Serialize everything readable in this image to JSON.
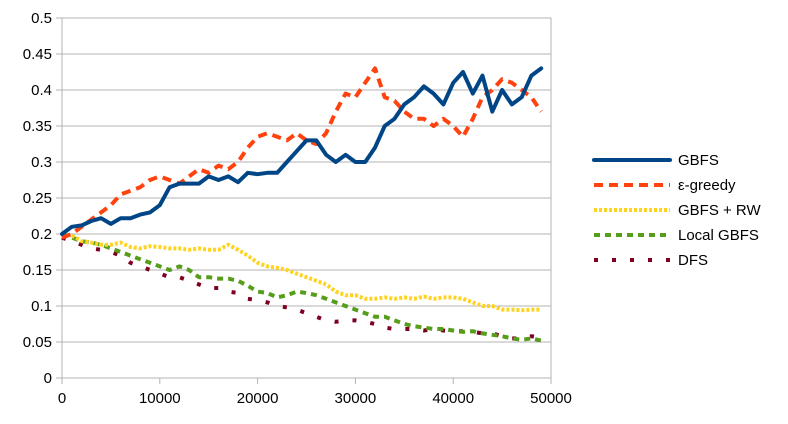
{
  "chart_data": {
    "type": "line",
    "title": "",
    "xlabel": "",
    "ylabel": "",
    "xlim": [
      0,
      50000
    ],
    "ylim": [
      0,
      0.5
    ],
    "x_ticks": [
      0,
      10000,
      20000,
      30000,
      40000,
      50000
    ],
    "x_tick_labels": [
      "0",
      "10000",
      "20000",
      "30000",
      "40000",
      "50000"
    ],
    "y_ticks": [
      0,
      0.05,
      0.1,
      0.15,
      0.2,
      0.25,
      0.3,
      0.35,
      0.4,
      0.45,
      0.5
    ],
    "y_tick_labels": [
      "0",
      "0.05",
      "0.1",
      "0.15",
      "0.2",
      "0.25",
      "0.3",
      "0.35",
      "0.4",
      "0.45",
      "0.5"
    ],
    "grid": "horizontal",
    "legend_position": "right",
    "series": [
      {
        "name": "GBFS",
        "color": "#004586",
        "style": "solid",
        "points": [
          [
            0,
            0.2
          ],
          [
            1000,
            0.21
          ],
          [
            2000,
            0.212
          ],
          [
            3000,
            0.218
          ],
          [
            4000,
            0.222
          ],
          [
            5000,
            0.214
          ],
          [
            6000,
            0.222
          ],
          [
            7000,
            0.222
          ],
          [
            8000,
            0.227
          ],
          [
            9000,
            0.23
          ],
          [
            10000,
            0.24
          ],
          [
            11000,
            0.265
          ],
          [
            12000,
            0.27
          ],
          [
            13000,
            0.27
          ],
          [
            14000,
            0.27
          ],
          [
            15000,
            0.28
          ],
          [
            16000,
            0.275
          ],
          [
            17000,
            0.28
          ],
          [
            18000,
            0.272
          ],
          [
            19000,
            0.285
          ],
          [
            20000,
            0.283
          ],
          [
            21000,
            0.285
          ],
          [
            22000,
            0.285
          ],
          [
            23000,
            0.3
          ],
          [
            24000,
            0.315
          ],
          [
            25000,
            0.33
          ],
          [
            26000,
            0.33
          ],
          [
            27000,
            0.31
          ],
          [
            28000,
            0.3
          ],
          [
            29000,
            0.31
          ],
          [
            30000,
            0.3
          ],
          [
            31000,
            0.3
          ],
          [
            32000,
            0.32
          ],
          [
            33000,
            0.35
          ],
          [
            34000,
            0.36
          ],
          [
            35000,
            0.38
          ],
          [
            36000,
            0.39
          ],
          [
            37000,
            0.405
          ],
          [
            38000,
            0.395
          ],
          [
            39000,
            0.38
          ],
          [
            40000,
            0.41
          ],
          [
            41000,
            0.425
          ],
          [
            42000,
            0.395
          ],
          [
            43000,
            0.42
          ],
          [
            44000,
            0.37
          ],
          [
            45000,
            0.4
          ],
          [
            46000,
            0.38
          ],
          [
            47000,
            0.39
          ],
          [
            48000,
            0.42
          ],
          [
            49000,
            0.43
          ]
        ]
      },
      {
        "name": "ε-greedy",
        "color": "#ff420e",
        "style": "dashed",
        "points": [
          [
            0,
            0.195
          ],
          [
            1000,
            0.2
          ],
          [
            2000,
            0.21
          ],
          [
            3000,
            0.22
          ],
          [
            4000,
            0.23
          ],
          [
            5000,
            0.24
          ],
          [
            6000,
            0.255
          ],
          [
            7000,
            0.26
          ],
          [
            8000,
            0.265
          ],
          [
            9000,
            0.275
          ],
          [
            10000,
            0.28
          ],
          [
            11000,
            0.275
          ],
          [
            12000,
            0.27
          ],
          [
            13000,
            0.28
          ],
          [
            14000,
            0.29
          ],
          [
            15000,
            0.285
          ],
          [
            16000,
            0.295
          ],
          [
            17000,
            0.29
          ],
          [
            18000,
            0.3
          ],
          [
            19000,
            0.32
          ],
          [
            20000,
            0.335
          ],
          [
            21000,
            0.34
          ],
          [
            22000,
            0.335
          ],
          [
            23000,
            0.33
          ],
          [
            24000,
            0.34
          ],
          [
            25000,
            0.33
          ],
          [
            26000,
            0.325
          ],
          [
            27000,
            0.34
          ],
          [
            28000,
            0.37
          ],
          [
            29000,
            0.395
          ],
          [
            30000,
            0.39
          ],
          [
            31000,
            0.41
          ],
          [
            32000,
            0.43
          ],
          [
            33000,
            0.39
          ],
          [
            34000,
            0.385
          ],
          [
            35000,
            0.37
          ],
          [
            36000,
            0.36
          ],
          [
            37000,
            0.36
          ],
          [
            38000,
            0.35
          ],
          [
            39000,
            0.36
          ],
          [
            40000,
            0.35
          ],
          [
            41000,
            0.335
          ],
          [
            42000,
            0.36
          ],
          [
            43000,
            0.39
          ],
          [
            44000,
            0.4
          ],
          [
            45000,
            0.415
          ],
          [
            46000,
            0.41
          ],
          [
            47000,
            0.4
          ],
          [
            48000,
            0.39
          ],
          [
            49000,
            0.37
          ]
        ]
      },
      {
        "name": "GBFS + RW",
        "color": "#ffd320",
        "style": "dotted",
        "points": [
          [
            0,
            0.2
          ],
          [
            1000,
            0.198
          ],
          [
            2000,
            0.19
          ],
          [
            3000,
            0.188
          ],
          [
            4000,
            0.185
          ],
          [
            5000,
            0.185
          ],
          [
            6000,
            0.188
          ],
          [
            7000,
            0.182
          ],
          [
            8000,
            0.18
          ],
          [
            9000,
            0.183
          ],
          [
            10000,
            0.182
          ],
          [
            11000,
            0.18
          ],
          [
            12000,
            0.18
          ],
          [
            13000,
            0.178
          ],
          [
            14000,
            0.18
          ],
          [
            15000,
            0.178
          ],
          [
            16000,
            0.178
          ],
          [
            17000,
            0.185
          ],
          [
            18000,
            0.178
          ],
          [
            19000,
            0.17
          ],
          [
            20000,
            0.16
          ],
          [
            21000,
            0.155
          ],
          [
            22000,
            0.153
          ],
          [
            23000,
            0.15
          ],
          [
            24000,
            0.145
          ],
          [
            25000,
            0.14
          ],
          [
            26000,
            0.135
          ],
          [
            27000,
            0.13
          ],
          [
            28000,
            0.12
          ],
          [
            29000,
            0.115
          ],
          [
            30000,
            0.115
          ],
          [
            31000,
            0.11
          ],
          [
            32000,
            0.11
          ],
          [
            33000,
            0.112
          ],
          [
            34000,
            0.11
          ],
          [
            35000,
            0.112
          ],
          [
            36000,
            0.11
          ],
          [
            37000,
            0.113
          ],
          [
            38000,
            0.11
          ],
          [
            39000,
            0.112
          ],
          [
            40000,
            0.112
          ],
          [
            41000,
            0.11
          ],
          [
            42000,
            0.105
          ],
          [
            43000,
            0.1
          ],
          [
            44000,
            0.1
          ],
          [
            45000,
            0.095
          ],
          [
            46000,
            0.095
          ],
          [
            47000,
            0.094
          ],
          [
            48000,
            0.095
          ],
          [
            49000,
            0.095
          ]
        ]
      },
      {
        "name": "Local GBFS",
        "color": "#579d1c",
        "style": "dotted-thick",
        "points": [
          [
            0,
            0.2
          ],
          [
            1000,
            0.195
          ],
          [
            2000,
            0.19
          ],
          [
            3000,
            0.188
          ],
          [
            4000,
            0.185
          ],
          [
            5000,
            0.18
          ],
          [
            6000,
            0.175
          ],
          [
            7000,
            0.17
          ],
          [
            8000,
            0.165
          ],
          [
            9000,
            0.16
          ],
          [
            10000,
            0.155
          ],
          [
            11000,
            0.15
          ],
          [
            12000,
            0.155
          ],
          [
            13000,
            0.15
          ],
          [
            14000,
            0.14
          ],
          [
            15000,
            0.14
          ],
          [
            16000,
            0.138
          ],
          [
            17000,
            0.138
          ],
          [
            18000,
            0.135
          ],
          [
            19000,
            0.128
          ],
          [
            20000,
            0.12
          ],
          [
            21000,
            0.118
          ],
          [
            22000,
            0.112
          ],
          [
            23000,
            0.115
          ],
          [
            24000,
            0.12
          ],
          [
            25000,
            0.118
          ],
          [
            26000,
            0.115
          ],
          [
            27000,
            0.11
          ],
          [
            28000,
            0.105
          ],
          [
            29000,
            0.1
          ],
          [
            30000,
            0.095
          ],
          [
            31000,
            0.09
          ],
          [
            32000,
            0.085
          ],
          [
            33000,
            0.085
          ],
          [
            34000,
            0.08
          ],
          [
            35000,
            0.075
          ],
          [
            36000,
            0.072
          ],
          [
            37000,
            0.07
          ],
          [
            38000,
            0.068
          ],
          [
            39000,
            0.068
          ],
          [
            40000,
            0.066
          ],
          [
            41000,
            0.064
          ],
          [
            42000,
            0.065
          ],
          [
            43000,
            0.062
          ],
          [
            44000,
            0.06
          ],
          [
            45000,
            0.058
          ],
          [
            46000,
            0.055
          ],
          [
            47000,
            0.053
          ],
          [
            48000,
            0.055
          ],
          [
            49000,
            0.052
          ]
        ]
      },
      {
        "name": "DFS",
        "color": "#7e0021",
        "style": "dotted-sparse",
        "points": [
          [
            0,
            0.195
          ],
          [
            1000,
            0.19
          ],
          [
            2000,
            0.185
          ],
          [
            3000,
            0.18
          ],
          [
            4000,
            0.178
          ],
          [
            5000,
            0.175
          ],
          [
            6000,
            0.17
          ],
          [
            7000,
            0.16
          ],
          [
            8000,
            0.155
          ],
          [
            9000,
            0.15
          ],
          [
            10000,
            0.145
          ],
          [
            11000,
            0.14
          ],
          [
            12000,
            0.14
          ],
          [
            13000,
            0.135
          ],
          [
            14000,
            0.13
          ],
          [
            15000,
            0.125
          ],
          [
            16000,
            0.125
          ],
          [
            17000,
            0.12
          ],
          [
            18000,
            0.118
          ],
          [
            19000,
            0.11
          ],
          [
            20000,
            0.108
          ],
          [
            21000,
            0.105
          ],
          [
            22000,
            0.1
          ],
          [
            23000,
            0.098
          ],
          [
            24000,
            0.095
          ],
          [
            25000,
            0.09
          ],
          [
            26000,
            0.085
          ],
          [
            27000,
            0.08
          ],
          [
            28000,
            0.078
          ],
          [
            29000,
            0.08
          ],
          [
            30000,
            0.08
          ],
          [
            31000,
            0.078
          ],
          [
            32000,
            0.075
          ],
          [
            33000,
            0.07
          ],
          [
            34000,
            0.068
          ],
          [
            35000,
            0.068
          ],
          [
            36000,
            0.068
          ],
          [
            37000,
            0.066
          ],
          [
            38000,
            0.068
          ],
          [
            39000,
            0.066
          ],
          [
            40000,
            0.065
          ],
          [
            41000,
            0.065
          ],
          [
            42000,
            0.064
          ],
          [
            43000,
            0.062
          ],
          [
            44000,
            0.062
          ],
          [
            45000,
            0.058
          ],
          [
            46000,
            0.055
          ],
          [
            47000,
            0.055
          ],
          [
            48000,
            0.058
          ],
          [
            49000,
            0.056
          ]
        ]
      }
    ]
  }
}
